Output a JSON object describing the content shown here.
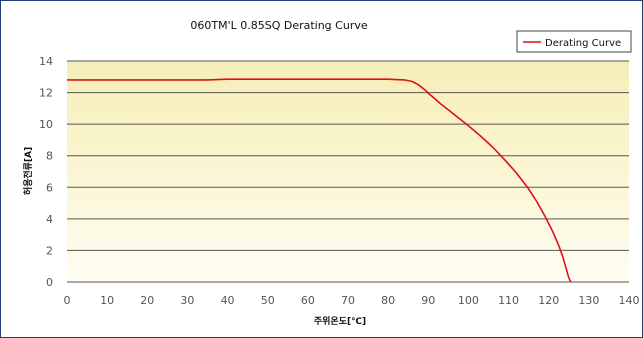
{
  "chart_data": {
    "type": "line",
    "title": "060TM'L 0.85SQ Derating Curve",
    "xlabel": "주위온도[℃]",
    "ylabel": "허용전류[A]",
    "xlim": [
      0,
      140
    ],
    "ylim": [
      0,
      14
    ],
    "x_ticks": [
      0,
      10,
      20,
      30,
      40,
      50,
      60,
      70,
      80,
      90,
      100,
      110,
      120,
      130,
      140
    ],
    "y_ticks": [
      0,
      2,
      4,
      6,
      8,
      10,
      12,
      14
    ],
    "grid": "horizontal",
    "legend_position": "top-right",
    "series": [
      {
        "name": "Derating Curve",
        "color": "#e0101a",
        "x": [
          0,
          10,
          20,
          30,
          35,
          40,
          50,
          60,
          70,
          80,
          84,
          86,
          87.5,
          88.5,
          89.5,
          90,
          91,
          93,
          95,
          97,
          100,
          103,
          106,
          109,
          112,
          115,
          117,
          119,
          121,
          122.5,
          123.5,
          124.3,
          124.9,
          125.3,
          125.5
        ],
        "y": [
          12.8,
          12.8,
          12.8,
          12.8,
          12.8,
          12.85,
          12.85,
          12.85,
          12.85,
          12.85,
          12.8,
          12.7,
          12.5,
          12.3,
          12.1,
          11.95,
          11.75,
          11.3,
          10.9,
          10.5,
          9.9,
          9.25,
          8.55,
          7.75,
          6.9,
          5.9,
          5.1,
          4.2,
          3.2,
          2.3,
          1.6,
          0.9,
          0.35,
          0.1,
          0
        ]
      }
    ]
  },
  "colors": {
    "plot_top": "#f6eeb6",
    "plot_bottom": "#fffdf2",
    "grid": "#555555",
    "frame": "#1f3f7a"
  }
}
